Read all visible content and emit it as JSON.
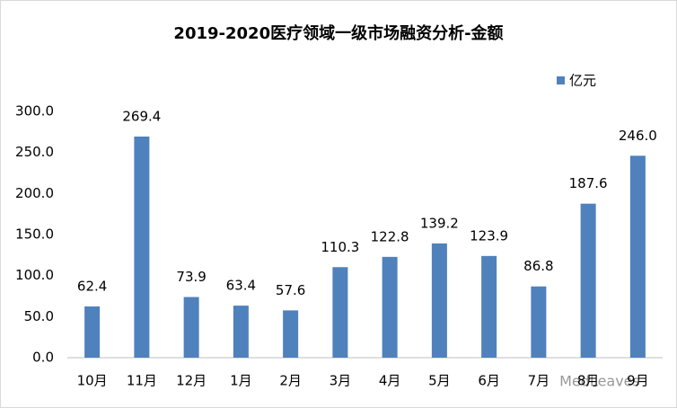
{
  "chart_data": {
    "type": "bar",
    "title": "2019-2020医疗领域一级市场融资分析-金额",
    "categories": [
      "10月",
      "11月",
      "12月",
      "1月",
      "2月",
      "3月",
      "4月",
      "5月",
      "6月",
      "7月",
      "8月",
      "9月"
    ],
    "series": [
      {
        "name": "亿元",
        "color": "#4f81bd",
        "values": [
          62.4,
          269.4,
          73.9,
          63.4,
          57.6,
          110.3,
          122.8,
          139.2,
          123.9,
          86.8,
          187.6,
          246.0
        ],
        "value_labels": [
          "62.4",
          "269.4",
          "73.9",
          "63.4",
          "57.6",
          "110.3",
          "122.8",
          "139.2",
          "123.9",
          "86.8",
          "187.6",
          "246.0"
        ]
      }
    ],
    "ylim": [
      0,
      300
    ],
    "yticks": [
      {
        "value": 0,
        "label": "0.0"
      },
      {
        "value": 50,
        "label": "50.0"
      },
      {
        "value": 100,
        "label": "100.0"
      },
      {
        "value": 150,
        "label": "150.0"
      },
      {
        "value": 200,
        "label": "200.0"
      },
      {
        "value": 250,
        "label": "250.0"
      },
      {
        "value": 300,
        "label": "300.0"
      }
    ],
    "grid": false,
    "legend": "top-right",
    "watermark": "MedLeaves"
  }
}
